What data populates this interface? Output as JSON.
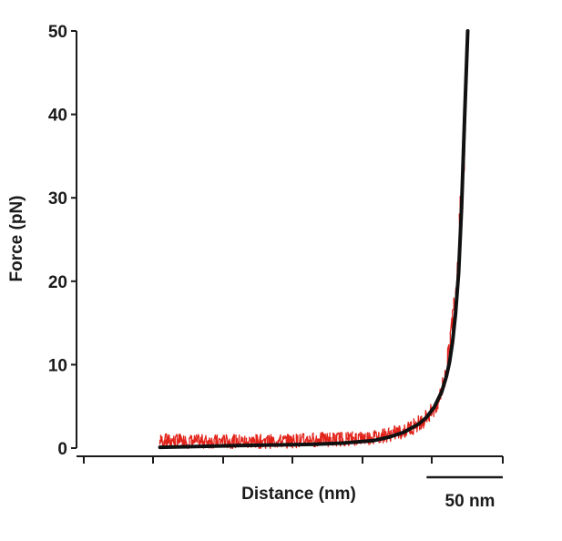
{
  "chart_data": {
    "type": "line",
    "title": "",
    "xlabel": "Distance (nm)",
    "ylabel": "Force (pN)",
    "ylim": [
      0,
      50
    ],
    "yticks": [
      0,
      10,
      20,
      30,
      40,
      50
    ],
    "x_ticks_labeled": false,
    "scale_bar": {
      "label": "50 nm",
      "length_nm": 50
    },
    "xlim": [
      -250,
      25
    ],
    "grid": false,
    "legend": "none",
    "series": [
      {
        "role": "measured",
        "color": "#e2231a",
        "x": [
          -200,
          -180,
          -160,
          -140,
          -120,
          -100,
          -80,
          -60,
          -40,
          -30,
          -20,
          -15,
          -10,
          -5,
          0
        ],
        "y": [
          0.9,
          0.8,
          0.8,
          0.8,
          0.8,
          1.0,
          1.1,
          1.3,
          2.0,
          3.0,
          4.5,
          6.8,
          11.5,
          21.0,
          37.0
        ]
      },
      {
        "role": "fit",
        "color": "#111111",
        "x": [
          -200,
          -150,
          -100,
          -80,
          -60,
          -50,
          -40,
          -30,
          -25,
          -20,
          -15,
          -12,
          -10,
          -8,
          -6,
          -4,
          -2,
          0,
          2
        ],
        "y": [
          0.1,
          0.3,
          0.45,
          0.6,
          0.9,
          1.3,
          1.9,
          2.9,
          3.7,
          4.9,
          6.8,
          8.6,
          10.3,
          12.7,
          16.1,
          21.0,
          29.0,
          40.0,
          50.0
        ]
      }
    ]
  }
}
